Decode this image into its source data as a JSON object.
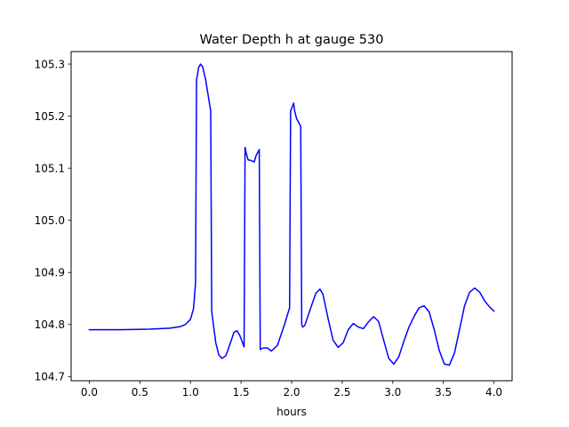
{
  "chart_data": {
    "type": "line",
    "title": "Water Depth h at gauge 530",
    "xlabel": "hours",
    "ylabel": "",
    "xlim": [
      -0.18,
      4.18
    ],
    "ylim": [
      104.692,
      105.324
    ],
    "xticks": [
      0.0,
      0.5,
      1.0,
      1.5,
      2.0,
      2.5,
      3.0,
      3.5,
      4.0
    ],
    "xtick_labels": [
      "0.0",
      "0.5",
      "1.0",
      "1.5",
      "2.0",
      "2.5",
      "3.0",
      "3.5",
      "4.0"
    ],
    "yticks": [
      104.7,
      104.8,
      104.9,
      105.0,
      105.1,
      105.2,
      105.3
    ],
    "ytick_labels": [
      "104.7",
      "104.8",
      "104.9",
      "105.0",
      "105.1",
      "105.2",
      "105.3"
    ],
    "grid": false,
    "series": [
      {
        "name": "",
        "color": "#0000ff",
        "x": [
          0.0,
          0.3,
          0.6,
          0.8,
          0.9,
          0.95,
          1.0,
          1.03,
          1.05,
          1.06,
          1.07,
          1.08,
          1.1,
          1.12,
          1.15,
          1.2,
          1.21,
          1.23,
          1.25,
          1.28,
          1.31,
          1.35,
          1.39,
          1.43,
          1.46,
          1.49,
          1.53,
          1.54,
          1.55,
          1.57,
          1.6,
          1.63,
          1.65,
          1.67,
          1.68,
          1.69,
          1.72,
          1.76,
          1.8,
          1.86,
          1.93,
          1.98,
          1.99,
          2.0,
          2.01,
          2.02,
          2.03,
          2.05,
          2.07,
          2.09,
          2.1,
          2.11,
          2.13,
          2.16,
          2.2,
          2.24,
          2.28,
          2.31,
          2.36,
          2.41,
          2.46,
          2.51,
          2.56,
          2.61,
          2.66,
          2.71,
          2.76,
          2.81,
          2.86,
          2.91,
          2.96,
          3.01,
          3.06,
          3.11,
          3.16,
          3.21,
          3.26,
          3.31,
          3.36,
          3.41,
          3.46,
          3.51,
          3.56,
          3.61,
          3.66,
          3.71,
          3.76,
          3.81,
          3.86,
          3.91,
          3.96,
          4.0
        ],
        "y": [
          104.79,
          104.79,
          104.791,
          104.793,
          104.796,
          104.8,
          104.81,
          104.83,
          104.88,
          105.27,
          105.28,
          105.293,
          105.3,
          105.295,
          105.27,
          105.21,
          104.825,
          104.795,
          104.765,
          104.742,
          104.735,
          104.74,
          104.762,
          104.785,
          104.788,
          104.778,
          104.757,
          105.14,
          105.13,
          105.116,
          105.115,
          105.112,
          105.125,
          105.132,
          105.136,
          104.752,
          104.755,
          104.755,
          104.749,
          104.76,
          104.8,
          104.832,
          105.21,
          105.215,
          105.22,
          105.225,
          105.21,
          105.195,
          105.188,
          105.18,
          104.8,
          104.795,
          104.798,
          104.815,
          104.838,
          104.86,
          104.868,
          104.858,
          104.812,
          104.77,
          104.756,
          104.765,
          104.79,
          104.802,
          104.795,
          104.792,
          104.805,
          104.815,
          104.806,
          104.77,
          104.735,
          104.724,
          104.738,
          104.768,
          104.795,
          104.815,
          104.832,
          104.836,
          104.824,
          104.79,
          104.75,
          104.724,
          104.722,
          104.745,
          104.79,
          104.836,
          104.862,
          104.87,
          104.862,
          104.845,
          104.833,
          104.826
        ]
      }
    ]
  }
}
